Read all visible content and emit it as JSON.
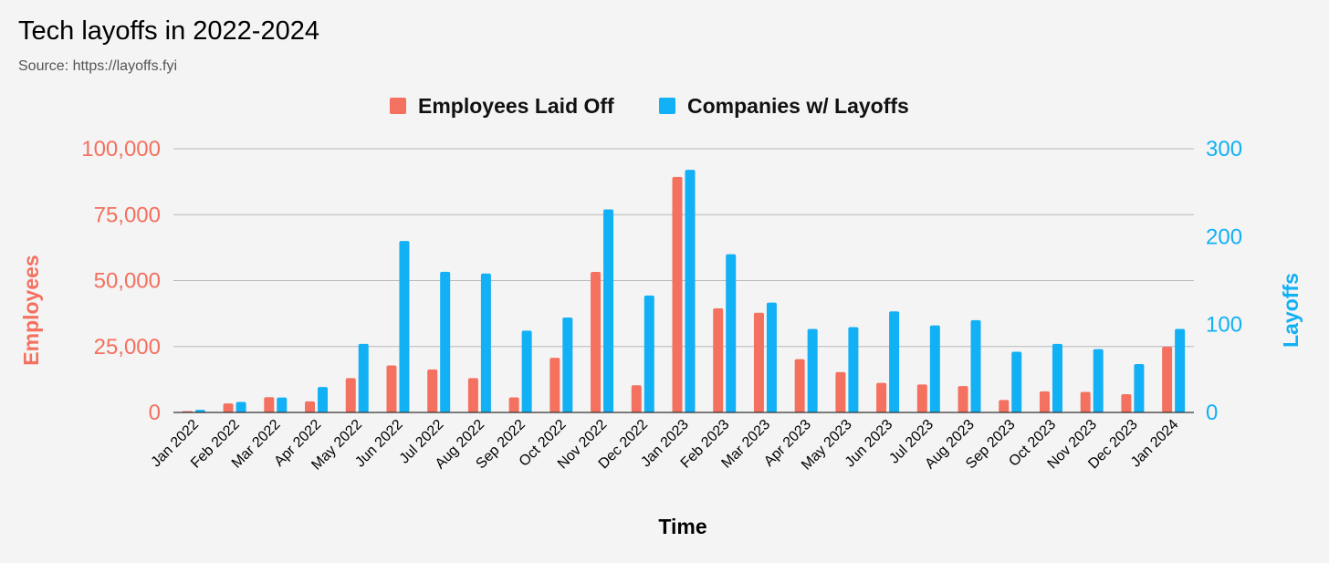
{
  "chart_data": {
    "type": "bar",
    "title": "Tech layoffs in 2022-2024",
    "subtitle": "Source: https://layoffs.fyi",
    "xlabel": "Time",
    "ylabel_left": "Employees",
    "ylabel_right": "Layoffs",
    "ylim_left": [
      0,
      100000
    ],
    "ylim_right": [
      0,
      300
    ],
    "yticks_left": [
      "0",
      "25,000",
      "50,000",
      "75,000",
      "100,000"
    ],
    "yticks_right": [
      "0",
      "100",
      "200",
      "300"
    ],
    "grid": true,
    "legend_position": "top-center",
    "categories": [
      "Jan 2022",
      "Feb 2022",
      "Mar 2022",
      "Apr 2022",
      "May 2022",
      "Jun 2022",
      "Jul 2022",
      "Aug 2022",
      "Sep 2022",
      "Oct 2022",
      "Nov 2022",
      "Dec 2022",
      "Jan 2023",
      "Feb 2023",
      "Mar 2023",
      "Apr 2023",
      "May 2023",
      "Jun 2023",
      "Jul 2023",
      "Aug 2023",
      "Sep 2023",
      "Oct 2023",
      "Nov 2023",
      "Dec 2023",
      "Jan 2024"
    ],
    "series": [
      {
        "name": "Employees Laid Off",
        "axis": "left",
        "color": "#f4705f",
        "values": [
          500,
          3400,
          5800,
          4200,
          13000,
          17800,
          16300,
          13000,
          5700,
          20700,
          53300,
          10300,
          89300,
          39500,
          37800,
          20200,
          15300,
          11200,
          10600,
          10000,
          4700,
          8000,
          7800,
          6900,
          24900
        ]
      },
      {
        "name": "Companies w/ Layoffs",
        "axis": "right",
        "color": "#12b0f4",
        "values": [
          3,
          12,
          17,
          29,
          78,
          195,
          160,
          158,
          93,
          108,
          231,
          133,
          276,
          180,
          125,
          95,
          97,
          115,
          99,
          105,
          69,
          78,
          72,
          55,
          95
        ]
      }
    ]
  }
}
